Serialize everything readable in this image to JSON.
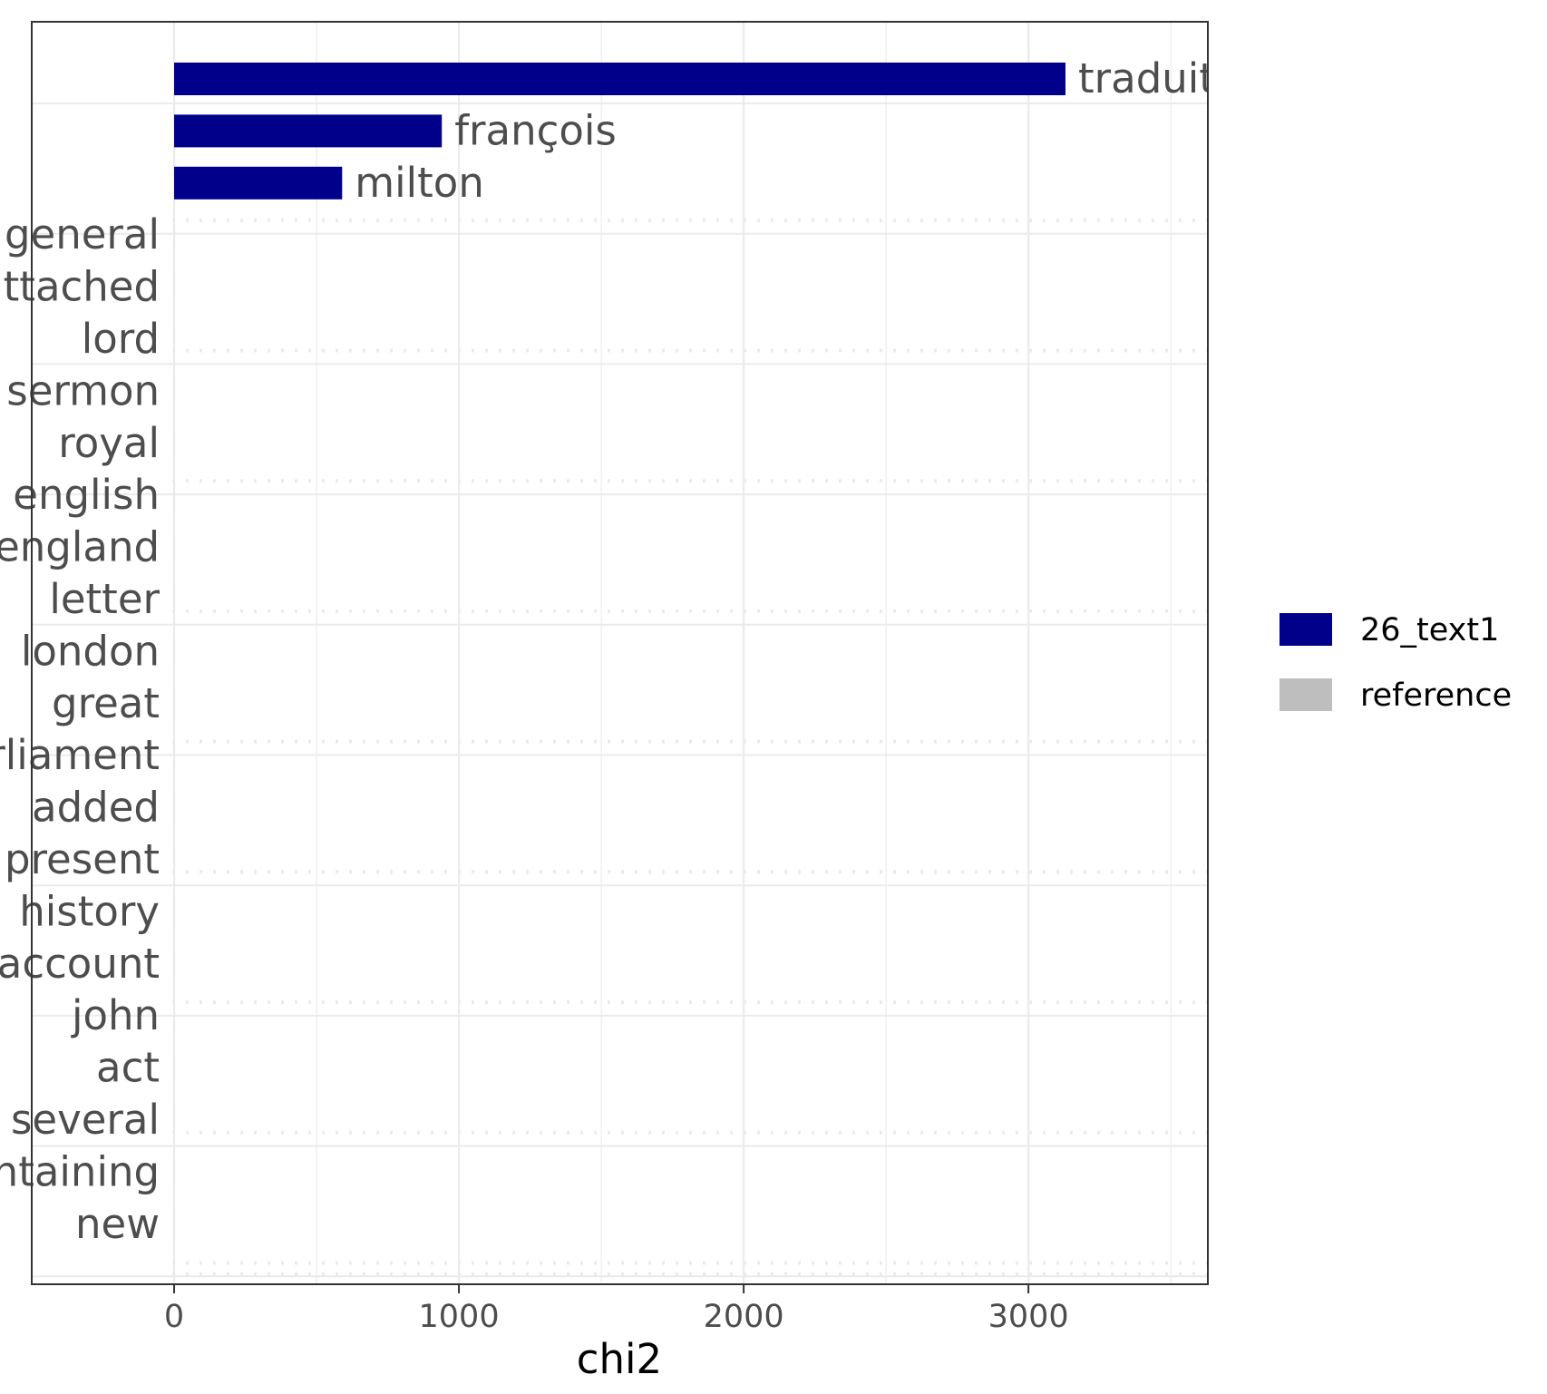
{
  "chart_data": {
    "type": "bar",
    "orientation": "horizontal",
    "title": "",
    "xlabel": "chi2",
    "ylabel": "",
    "xlim": [
      -500,
      3630
    ],
    "xticks": [
      0,
      1000,
      2000,
      3000
    ],
    "tick_labels": [
      "0",
      "1000",
      "2000",
      "3000"
    ],
    "grid": true,
    "legend_position": "right",
    "colors": {
      "26_text1": "#00008b",
      "reference": "#bebebe"
    },
    "series": [
      {
        "name": "26_text1",
        "color": "#00008b"
      },
      {
        "name": "reference",
        "color": "#bebebe"
      }
    ],
    "bars": [
      {
        "label": "traduit",
        "value": 3130,
        "series": "26_text1",
        "label_side": "right"
      },
      {
        "label": "françois",
        "value": 940,
        "series": "26_text1",
        "label_side": "right"
      },
      {
        "label": "milton",
        "value": 590,
        "series": "26_text1",
        "label_side": "right"
      },
      {
        "label": "general",
        "value": 0,
        "series": "reference",
        "label_side": "left"
      },
      {
        "label": "attached",
        "value": 0,
        "series": "reference",
        "label_side": "left"
      },
      {
        "label": "lord",
        "value": 0,
        "series": "reference",
        "label_side": "left"
      },
      {
        "label": "sermon",
        "value": 0,
        "series": "reference",
        "label_side": "left"
      },
      {
        "label": "royal",
        "value": 0,
        "series": "reference",
        "label_side": "left"
      },
      {
        "label": "english",
        "value": 0,
        "series": "reference",
        "label_side": "left"
      },
      {
        "label": "england",
        "value": 0,
        "series": "reference",
        "label_side": "left"
      },
      {
        "label": "letter",
        "value": 0,
        "series": "reference",
        "label_side": "left"
      },
      {
        "label": "london",
        "value": 0,
        "series": "reference",
        "label_side": "left"
      },
      {
        "label": "great",
        "value": 0,
        "series": "reference",
        "label_side": "left"
      },
      {
        "label": "parliament",
        "value": 0,
        "series": "reference",
        "label_side": "left"
      },
      {
        "label": "added",
        "value": 0,
        "series": "reference",
        "label_side": "left"
      },
      {
        "label": "present",
        "value": 0,
        "series": "reference",
        "label_side": "left"
      },
      {
        "label": "history",
        "value": 0,
        "series": "reference",
        "label_side": "left"
      },
      {
        "label": "account",
        "value": 0,
        "series": "reference",
        "label_side": "left"
      },
      {
        "label": "john",
        "value": 0,
        "series": "reference",
        "label_side": "left"
      },
      {
        "label": "act",
        "value": 0,
        "series": "reference",
        "label_side": "left"
      },
      {
        "label": "several",
        "value": 0,
        "series": "reference",
        "label_side": "left"
      },
      {
        "label": "containing",
        "value": 0,
        "series": "reference",
        "label_side": "left"
      },
      {
        "label": "new",
        "value": 0,
        "series": "reference",
        "label_side": "left"
      }
    ]
  }
}
